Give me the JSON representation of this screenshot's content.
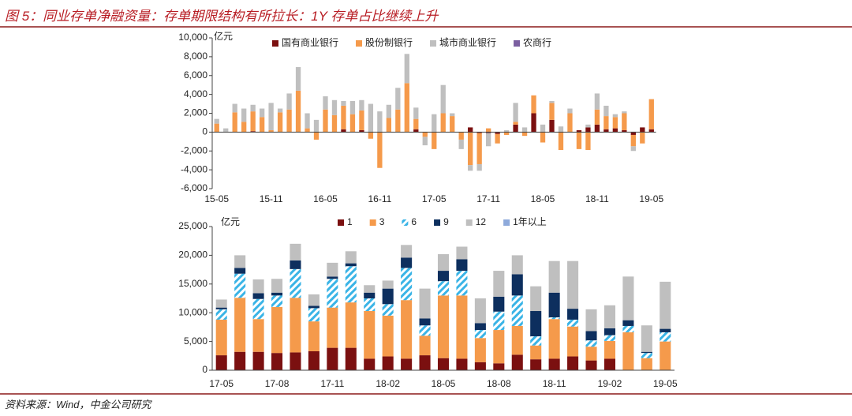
{
  "title": "图 5：同业存单净融资量：存单期限结构有所拉长：1Y 存单占比继续上升",
  "source": "资料来源：Wind，中金公司研究",
  "chart_data": [
    {
      "type": "bar",
      "stacked": true,
      "y_unit": "亿元",
      "legend": "top",
      "categories": [
        "15-05",
        null,
        null,
        null,
        null,
        null,
        "15-11",
        null,
        null,
        null,
        null,
        null,
        "16-05",
        null,
        null,
        null,
        null,
        null,
        "16-11",
        null,
        null,
        null,
        null,
        null,
        "17-05",
        null,
        null,
        null,
        null,
        null,
        "17-11",
        null,
        null,
        null,
        null,
        null,
        "18-05",
        null,
        null,
        null,
        null,
        null,
        "18-11",
        null,
        null,
        null,
        null,
        null,
        "19-05"
      ],
      "ylim": [
        -6000,
        10000
      ],
      "yticks": [
        {
          "value": -6000,
          "label": "-6,000"
        },
        {
          "value": -4000,
          "label": "-4,000"
        },
        {
          "value": -2000,
          "label": "-2,000"
        },
        0,
        {
          "value": 2000,
          "label": "2,000"
        },
        {
          "value": 4000,
          "label": "4,000"
        },
        {
          "value": 6000,
          "label": "6,000"
        },
        {
          "value": 8000,
          "label": "8,000"
        },
        {
          "value": 10000,
          "label": "10,000"
        }
      ],
      "series": [
        {
          "name": "国有商业银行",
          "color": "#7b1010",
          "values": [
            0,
            0,
            0,
            0,
            100,
            0,
            0,
            0,
            0,
            0,
            0,
            0,
            0,
            0,
            300,
            0,
            200,
            0,
            0,
            0,
            0,
            0,
            300,
            0,
            0,
            0,
            0,
            0,
            500,
            -100,
            -100,
            -200,
            0,
            800,
            0,
            2000,
            0,
            1300,
            0,
            0,
            200,
            500,
            800,
            300,
            400,
            200,
            -300,
            500,
            300
          ]
        },
        {
          "name": "股份制银行",
          "color": "#f59a4b",
          "values": [
            900,
            0,
            2100,
            1100,
            2100,
            1600,
            200,
            2100,
            2400,
            4400,
            400,
            -800,
            2400,
            1800,
            2500,
            1900,
            2100,
            -700,
            -3800,
            1500,
            2400,
            5200,
            1100,
            -500,
            -1800,
            2000,
            1700,
            -800,
            -3500,
            -3300,
            400,
            -1000,
            -300,
            300,
            -400,
            1900,
            -1100,
            1800,
            -1900,
            2000,
            -1800,
            -1900,
            1600,
            1400,
            1200,
            1800,
            -1200,
            -1200,
            3200
          ]
        },
        {
          "name": "城市商业银行",
          "color": "#bfbfbf",
          "values": [
            500,
            400,
            900,
            1400,
            700,
            900,
            2900,
            400,
            1700,
            2500,
            1600,
            1300,
            1400,
            1600,
            500,
            1400,
            1100,
            3000,
            2200,
            1400,
            2300,
            3100,
            1200,
            -900,
            1900,
            3000,
            300,
            -1000,
            -600,
            -700,
            -1400,
            0,
            200,
            2000,
            500,
            0,
            800,
            200,
            600,
            500,
            0,
            300,
            1700,
            1100,
            300,
            200,
            -500,
            0,
            0
          ]
        },
        {
          "name": "农商行",
          "color": "#7b5fa0",
          "values": [
            0,
            0,
            0,
            0,
            0,
            0,
            0,
            0,
            0,
            0,
            0,
            0,
            0,
            0,
            0,
            0,
            0,
            0,
            0,
            0,
            0,
            0,
            0,
            0,
            0,
            0,
            0,
            0,
            0,
            0,
            0,
            0,
            0,
            0,
            0,
            0,
            0,
            0,
            0,
            0,
            0,
            0,
            0,
            0,
            0,
            0,
            0,
            0,
            0
          ]
        }
      ]
    },
    {
      "type": "bar",
      "stacked": true,
      "y_unit": "亿元",
      "legend": "top",
      "categories": [
        "17-05",
        null,
        null,
        "17-08",
        null,
        null,
        "17-11",
        null,
        null,
        "18-02",
        null,
        null,
        "18-05",
        null,
        null,
        "18-08",
        null,
        null,
        "18-11",
        null,
        null,
        "19-02",
        null,
        null,
        "19-05"
      ],
      "ylim": [
        0,
        25000
      ],
      "yticks": [
        0,
        {
          "value": 5000,
          "label": "5,000"
        },
        {
          "value": 10000,
          "label": "10,000"
        },
        {
          "value": 15000,
          "label": "15,000"
        },
        {
          "value": 20000,
          "label": "20,000"
        },
        {
          "value": 25000,
          "label": "25,000"
        }
      ],
      "series": [
        {
          "name": "1",
          "color": "#7b1010",
          "values": [
            2600,
            3200,
            3200,
            3000,
            3100,
            3300,
            3900,
            3900,
            2000,
            2400,
            2000,
            2600,
            2100,
            2000,
            1400,
            1200,
            2700,
            1900,
            2000,
            2400,
            1700,
            2000,
            0,
            0,
            0
          ]
        },
        {
          "name": "3",
          "color": "#f59a4b",
          "values": [
            6200,
            9400,
            5700,
            8000,
            9500,
            5200,
            7000,
            7900,
            8300,
            7100,
            10200,
            3400,
            10900,
            11000,
            4200,
            5800,
            5000,
            2400,
            6900,
            5200,
            2400,
            3100,
            6600,
            2100,
            5000
          ]
        },
        {
          "name": "6",
          "color": "#3ab4e6",
          "hatch": true,
          "values": [
            1800,
            4200,
            3500,
            2000,
            5000,
            2300,
            5000,
            6300,
            2200,
            2000,
            5600,
            1800,
            2500,
            4300,
            1400,
            3200,
            5300,
            1600,
            300,
            1200,
            1100,
            1000,
            1100,
            900,
            1600
          ]
        },
        {
          "name": "9",
          "color": "#0d2f5e",
          "values": [
            300,
            1000,
            1000,
            500,
            1500,
            400,
            400,
            500,
            1000,
            2700,
            1800,
            1200,
            1800,
            2000,
            1200,
            2600,
            3700,
            4400,
            4300,
            1900,
            1600,
            1200,
            1000,
            200,
            600
          ]
        },
        {
          "name": "12",
          "color": "#bfbfbf",
          "values": [
            1400,
            2200,
            2400,
            2400,
            2900,
            2000,
            2400,
            2100,
            1300,
            1400,
            2200,
            5200,
            2900,
            2200,
            4300,
            4500,
            3300,
            4300,
            5500,
            8300,
            3800,
            4000,
            7600,
            4600,
            8200
          ]
        },
        {
          "name": "1年以上",
          "color": "#8eaadb",
          "values": [
            0,
            0,
            0,
            0,
            0,
            0,
            0,
            0,
            0,
            0,
            0,
            0,
            0,
            0,
            0,
            0,
            0,
            0,
            0,
            0,
            0,
            0,
            0,
            0,
            0
          ]
        }
      ]
    }
  ]
}
